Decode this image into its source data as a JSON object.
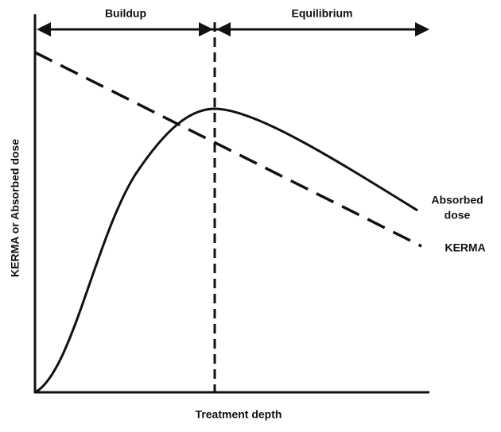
{
  "regions": {
    "left": "Buildup",
    "right": "Equilibrium"
  },
  "axes": {
    "y_label": "KERMA or Absorbed dose",
    "x_label": "Treatment depth"
  },
  "curves": {
    "absorbed_dose": [
      "Absorbed",
      "dose"
    ],
    "kerma": "KERMA"
  }
}
